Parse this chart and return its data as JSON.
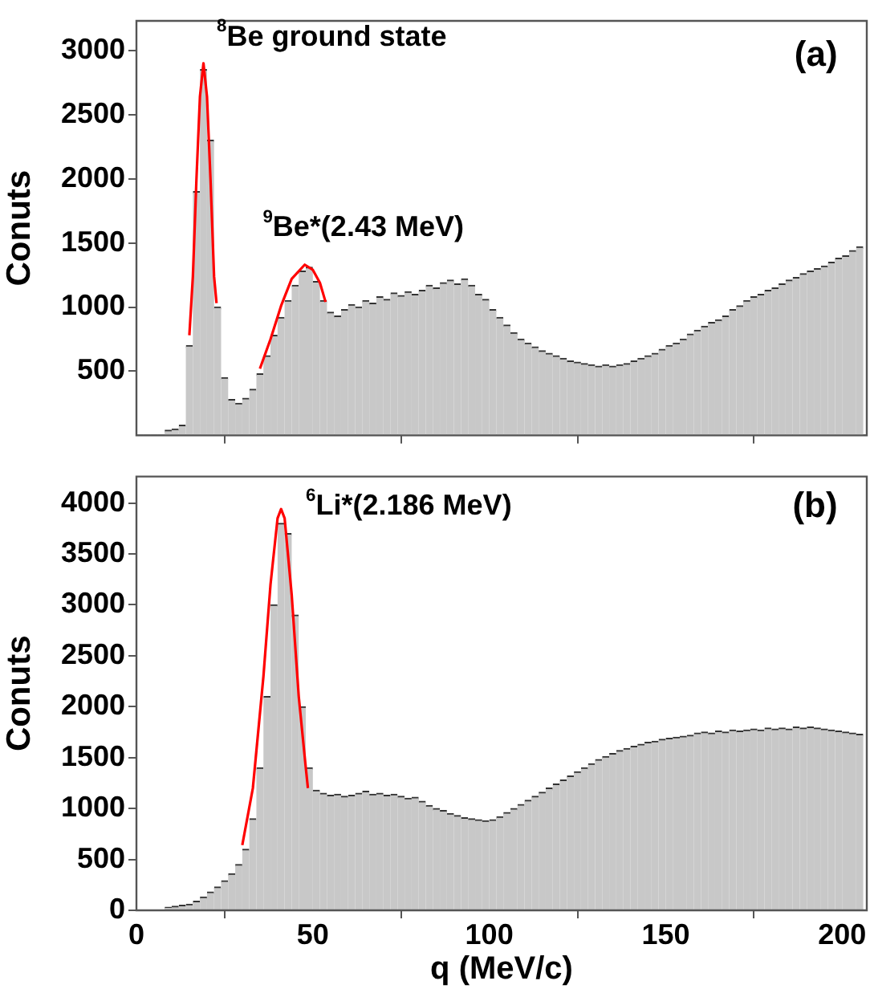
{
  "chart_data": [
    {
      "type": "histogram",
      "ylabel": "Conuts",
      "xlim": [
        0,
        207
      ],
      "ylim": [
        0,
        3230
      ],
      "xticks": [
        0,
        50,
        100,
        150,
        200
      ],
      "yticks": [
        500,
        1000,
        1500,
        2000,
        2500,
        3000
      ],
      "tick_labels": "y",
      "grid": false,
      "legend": false,
      "bins": [
        0,
        2,
        4,
        6,
        8,
        10,
        12,
        14,
        16,
        18,
        20,
        22,
        24,
        26,
        28,
        30,
        32,
        34,
        36,
        38,
        40,
        42,
        44,
        46,
        48,
        50,
        52,
        54,
        56,
        58,
        60,
        62,
        64,
        66,
        68,
        70,
        72,
        74,
        76,
        78,
        80,
        82,
        84,
        86,
        88,
        90,
        92,
        94,
        96,
        98,
        100,
        102,
        104,
        106,
        108,
        110,
        112,
        114,
        116,
        118,
        120,
        122,
        124,
        126,
        128,
        130,
        132,
        134,
        136,
        138,
        140,
        142,
        144,
        146,
        148,
        150,
        152,
        154,
        156,
        158,
        160,
        162,
        164,
        166,
        168,
        170,
        172,
        174,
        176,
        178,
        180,
        182,
        184,
        186,
        188,
        190,
        192,
        194,
        196,
        198,
        200,
        202,
        204,
        206
      ],
      "series": [
        {
          "color": "#c8c8c8",
          "values": [
            0,
            0,
            0,
            0,
            40,
            50,
            80,
            700,
            1900,
            2850,
            2300,
            1000,
            450,
            280,
            250,
            290,
            360,
            480,
            620,
            780,
            920,
            1050,
            1170,
            1280,
            1310,
            1200,
            1050,
            960,
            930,
            980,
            1020,
            1000,
            1050,
            1030,
            1080,
            1060,
            1110,
            1090,
            1120,
            1100,
            1130,
            1170,
            1150,
            1190,
            1210,
            1180,
            1220,
            1170,
            1100,
            1060,
            980,
            920,
            860,
            800,
            750,
            720,
            690,
            660,
            640,
            620,
            600,
            580,
            570,
            560,
            550,
            540,
            550,
            540,
            550,
            560,
            580,
            600,
            620,
            640,
            670,
            700,
            720,
            750,
            790,
            820,
            850,
            880,
            900,
            930,
            980,
            1010,
            1050,
            1080,
            1100,
            1130,
            1150,
            1180,
            1210,
            1230,
            1260,
            1280,
            1300,
            1320,
            1350,
            1380,
            1400,
            1440,
            1470
          ]
        },
        {
          "type": "line",
          "color": "#ff0000",
          "x": [
            15,
            16,
            17,
            18,
            19,
            20,
            21,
            22,
            22.7
          ],
          "values": [
            780,
            1240,
            1990,
            2640,
            2900,
            2640,
            1990,
            1240,
            1030
          ]
        },
        {
          "type": "line",
          "color": "#ff0000",
          "x": [
            35,
            38,
            41,
            44,
            47.7,
            50,
            52,
            53.6
          ],
          "values": [
            520,
            750,
            1010,
            1220,
            1330,
            1290,
            1190,
            1040
          ]
        }
      ],
      "annotations": [
        "$^{8}$Be ground state",
        "$^{9}$Be*(2.43 MeV)",
        "(a)"
      ]
    },
    {
      "type": "histogram",
      "xlabel": "q (MeV/c)",
      "ylabel": "Conuts",
      "xlim": [
        0,
        207
      ],
      "ylim": [
        0,
        4260
      ],
      "xticks": [
        0,
        50,
        100,
        150,
        200
      ],
      "yticks": [
        0,
        500,
        1000,
        1500,
        2000,
        2500,
        3000,
        3500,
        4000
      ],
      "grid": false,
      "legend": false,
      "bins": [
        0,
        2,
        4,
        6,
        8,
        10,
        12,
        14,
        16,
        18,
        20,
        22,
        24,
        26,
        28,
        30,
        32,
        34,
        36,
        38,
        40,
        42,
        44,
        46,
        48,
        50,
        52,
        54,
        56,
        58,
        60,
        62,
        64,
        66,
        68,
        70,
        72,
        74,
        76,
        78,
        80,
        82,
        84,
        86,
        88,
        90,
        92,
        94,
        96,
        98,
        100,
        102,
        104,
        106,
        108,
        110,
        112,
        114,
        116,
        118,
        120,
        122,
        124,
        126,
        128,
        130,
        132,
        134,
        136,
        138,
        140,
        142,
        144,
        146,
        148,
        150,
        152,
        154,
        156,
        158,
        160,
        162,
        164,
        166,
        168,
        170,
        172,
        174,
        176,
        178,
        180,
        182,
        184,
        186,
        188,
        190,
        192,
        194,
        196,
        198,
        200,
        202,
        204,
        206
      ],
      "series": [
        {
          "color": "#c8c8c8",
          "values": [
            0,
            0,
            0,
            0,
            30,
            40,
            50,
            60,
            90,
            130,
            180,
            230,
            290,
            360,
            450,
            600,
            900,
            1400,
            2100,
            3000,
            3800,
            3700,
            2900,
            2000,
            1400,
            1180,
            1150,
            1130,
            1140,
            1120,
            1130,
            1150,
            1170,
            1140,
            1150,
            1130,
            1140,
            1120,
            1100,
            1110,
            1070,
            1030,
            1000,
            980,
            950,
            930,
            910,
            900,
            890,
            880,
            890,
            920,
            960,
            1000,
            1040,
            1080,
            1120,
            1160,
            1200,
            1240,
            1280,
            1320,
            1360,
            1400,
            1440,
            1480,
            1510,
            1540,
            1570,
            1590,
            1610,
            1630,
            1650,
            1660,
            1680,
            1690,
            1700,
            1710,
            1720,
            1740,
            1750,
            1740,
            1760,
            1750,
            1770,
            1760,
            1770,
            1780,
            1770,
            1790,
            1780,
            1790,
            1780,
            1800,
            1790,
            1800,
            1790,
            1780,
            1770,
            1760,
            1750,
            1740,
            1730
          ]
        },
        {
          "type": "line",
          "color": "#ff0000",
          "x": [
            30,
            33,
            36,
            38,
            40,
            41,
            42,
            44,
            46,
            48,
            48.6
          ],
          "values": [
            640,
            1200,
            2300,
            3200,
            3850,
            3940,
            3850,
            3100,
            2100,
            1400,
            1200
          ]
        }
      ],
      "annotations": [
        "$^{6}$Li*(2.186 MeV)",
        "(b)"
      ]
    }
  ]
}
